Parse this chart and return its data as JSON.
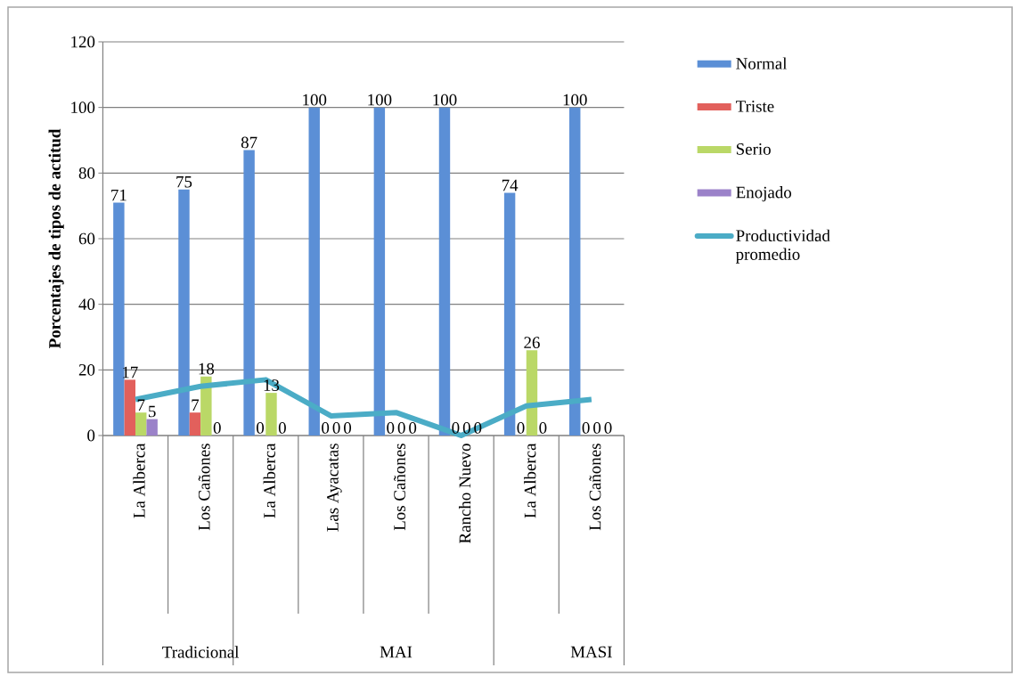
{
  "chart_data": {
    "type": "bar",
    "ylabel": "Porcentajes de tipos de actitud",
    "categories": [
      "La Alberca",
      "Los Cañones",
      "La Alberca",
      "Las Ayacatas",
      "Los Cañones",
      "Rancho Nuevo",
      "La Alberca",
      "Los Cañones"
    ],
    "series": [
      {
        "name": "Normal",
        "color": "#5b8fd6",
        "values": [
          71,
          75,
          87,
          100,
          100,
          100,
          74,
          100
        ],
        "value_labels": [
          "71",
          "75",
          "87",
          "100",
          "100",
          "100",
          "74",
          "100"
        ]
      },
      {
        "name": "Triste",
        "color": "#e2605c",
        "values": [
          17,
          7,
          0,
          0,
          0,
          0,
          0,
          0
        ],
        "value_labels": [
          "17",
          "7",
          "0",
          "0",
          "0",
          "0",
          "0",
          "0"
        ]
      },
      {
        "name": "Serio",
        "color": "#bad867",
        "values": [
          7,
          18,
          13,
          0,
          0,
          0,
          26,
          0
        ],
        "value_labels": [
          "7",
          "18",
          "13",
          "0",
          "0",
          "0",
          "26",
          "0"
        ]
      },
      {
        "name": "Enojado",
        "color": "#9b82c9",
        "values": [
          5,
          0,
          0,
          0,
          0,
          0,
          0,
          0
        ],
        "value_labels": [
          "5",
          "0",
          "0",
          "0",
          "0",
          "0",
          "0",
          "0"
        ]
      },
      {
        "name": "Productividad promedio",
        "type": "line",
        "color": "#4bacc6",
        "values": [
          11,
          15,
          17,
          6,
          7,
          0,
          9,
          11
        ]
      }
    ],
    "annotations": [
      "Tradicional",
      "MAI",
      "MASI"
    ],
    "ylim": [
      0,
      120
    ],
    "yticks": [
      0,
      20,
      40,
      60,
      80,
      100,
      120
    ],
    "grid": "y",
    "legend": "right"
  }
}
